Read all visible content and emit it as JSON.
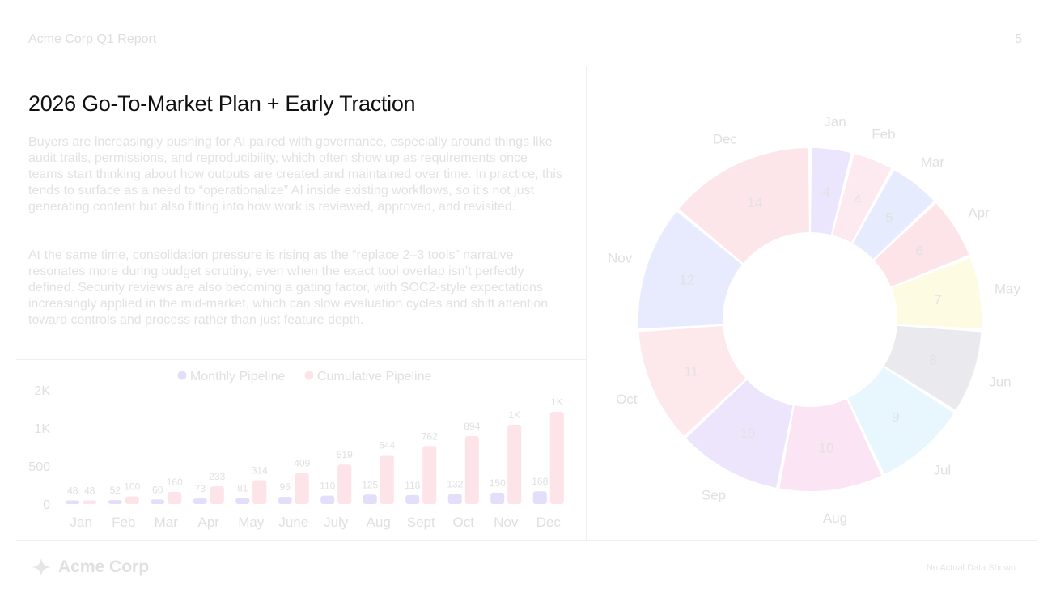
{
  "header": {
    "title": "Acme Corp Q1 Report",
    "page_number": "5"
  },
  "slide": {
    "title": "2026 Go-To-Market Plan + Early Traction",
    "paragraphs": [
      "Buyers are increasingly pushing for AI paired with governance, especially around things like audit trails, permissions, and reproducibility, which often show up as requirements once teams start thinking about how outputs are created and maintained over time. In practice, this tends to surface as a need to “operationalize” AI inside existing workflows, so it’s not just generating content but also fitting into how work is reviewed, approved, and revisited.",
      "At the same time, consolidation pressure is rising as the “replace 2–3 tools” narrative resonates more during budget scrutiny, even when the exact tool overlap isn’t perfectly defined. Security reviews are also becoming a gating factor, with SOC2-style expectations increasingly applied in the mid-market, which can slow evaluation cycles and shift attention toward controls and process rather than just feature depth."
    ]
  },
  "footer": {
    "logo_text": "Acme Corp",
    "logo_icon": "sparkle-icon",
    "note": "No Actual Data Shown"
  },
  "chart_data": [
    {
      "type": "bar",
      "legend_position": "top-center",
      "categories": [
        "Jan",
        "Feb",
        "Mar",
        "Apr",
        "May",
        "June",
        "July",
        "Aug",
        "Sept",
        "Oct",
        "Nov",
        "Dec"
      ],
      "series": [
        {
          "name": "Monthly Pipeline",
          "color": "#e4defa",
          "values": [
            48,
            52,
            60,
            73,
            81,
            95,
            110,
            125,
            118,
            132,
            150,
            168
          ],
          "labels": [
            "48",
            "52",
            "60",
            "73",
            "81",
            "95",
            "110",
            "125",
            "118",
            "132",
            "150",
            "168"
          ]
        },
        {
          "name": "Cumulative Pipeline",
          "color": "#fde4e9",
          "values": [
            48,
            100,
            160,
            233,
            314,
            409,
            519,
            644,
            762,
            894,
            1044,
            1212
          ],
          "labels": [
            "48",
            "100",
            "160",
            "233",
            "314",
            "409",
            "519",
            "644",
            "762",
            "894",
            "1K",
            "1K"
          ]
        }
      ],
      "yticks": [
        {
          "value": 0,
          "label": "0"
        },
        {
          "value": 500,
          "label": "500"
        },
        {
          "value": 1000,
          "label": "1K"
        },
        {
          "value": 1500,
          "label": "2K"
        }
      ],
      "ylim": [
        0,
        1500
      ],
      "grid": false
    },
    {
      "type": "pie",
      "donut": true,
      "categories": [
        "Jan",
        "Feb",
        "Mar",
        "Apr",
        "May",
        "Jun",
        "Jul",
        "Aug",
        "Sep",
        "Oct",
        "Nov",
        "Dec"
      ],
      "values": [
        4,
        4,
        5,
        6,
        7,
        8,
        9,
        10,
        10,
        11,
        12,
        14
      ],
      "colors": [
        "#ebe6fd",
        "#fdeaf0",
        "#e6ebfd",
        "#fde4e8",
        "#fefbe3",
        "#e9e9ee",
        "#e8f7fe",
        "#fbe4f3",
        "#ece5fc",
        "#fde8ec",
        "#e7ebfd",
        "#fde6ea"
      ]
    }
  ]
}
